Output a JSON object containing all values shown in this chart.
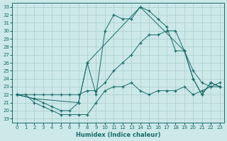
{
  "xlabel": "Humidex (Indice chaleur)",
  "background_color": "#cce8e8",
  "grid_color": "#aacccc",
  "line_color": "#1a6b6b",
  "xlim": [
    -0.5,
    23.5
  ],
  "ylim": [
    18.5,
    33.5
  ],
  "yticks": [
    19,
    20,
    21,
    22,
    23,
    24,
    25,
    26,
    27,
    28,
    29,
    30,
    31,
    32,
    33
  ],
  "xticks": [
    0,
    1,
    2,
    3,
    4,
    5,
    6,
    7,
    8,
    9,
    10,
    11,
    12,
    13,
    14,
    15,
    16,
    17,
    18,
    19,
    20,
    21,
    22,
    23
  ],
  "line1_x": [
    0,
    1,
    2,
    3,
    4,
    5,
    6,
    7,
    8,
    9,
    10,
    11,
    12,
    13,
    14,
    15,
    16,
    17,
    18,
    19,
    20,
    21,
    22,
    23
  ],
  "line1_y": [
    22,
    22,
    21,
    20.5,
    20,
    19.5,
    19.5,
    19.5,
    19.5,
    21,
    22.5,
    23,
    23,
    23.5,
    22.5,
    22,
    22.5,
    22.5,
    22.5,
    23,
    22,
    22.5,
    23,
    23
  ],
  "line2_x": [
    0,
    2,
    3,
    4,
    5,
    6,
    7,
    8,
    9,
    10,
    11,
    12,
    13,
    14,
    15,
    16,
    17,
    18,
    19,
    20,
    21,
    22,
    23
  ],
  "line2_y": [
    22,
    22,
    22,
    22,
    22,
    22,
    22,
    22.5,
    22.5,
    23.5,
    25,
    26,
    27,
    28.5,
    29.5,
    29.5,
    30,
    30,
    27.5,
    25,
    23.5,
    23,
    23.5
  ],
  "line3_x": [
    0,
    2,
    3,
    4,
    5,
    6,
    7,
    8,
    9,
    10,
    11,
    12,
    13,
    14,
    15,
    16,
    17,
    18,
    19,
    20,
    21,
    22,
    23
  ],
  "line3_y": [
    22,
    21.5,
    21,
    20.5,
    20,
    20,
    21,
    26,
    22,
    30,
    32,
    31.5,
    31.5,
    33,
    32.5,
    31.5,
    30.5,
    27.5,
    27.5,
    24,
    22,
    23.5,
    23
  ],
  "line4_x": [
    0,
    2,
    7,
    8,
    14,
    19,
    20,
    21,
    22,
    23
  ],
  "line4_y": [
    22,
    21.5,
    21,
    26,
    33,
    27.5,
    24,
    22,
    23.5,
    23
  ]
}
